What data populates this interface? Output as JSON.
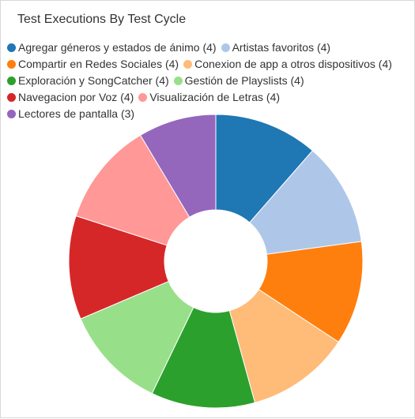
{
  "chart_data": {
    "type": "pie",
    "title": "Test Executions By Test Cycle",
    "legend_position": "top",
    "series": [
      {
        "label": "Agregar géneros y estados de ánimo",
        "value": 4,
        "color": "#1f77b4"
      },
      {
        "label": "Artistas favoritos",
        "value": 4,
        "color": "#aec7e8"
      },
      {
        "label": "Compartir en Redes Sociales",
        "value": 4,
        "color": "#ff7f0e"
      },
      {
        "label": "Conexion de app a otros dispositivos",
        "value": 4,
        "color": "#ffbb78"
      },
      {
        "label": "Exploración y SongCatcher",
        "value": 4,
        "color": "#2ca02c"
      },
      {
        "label": "Gestión de Playslists",
        "value": 4,
        "color": "#98df8a"
      },
      {
        "label": "Navegacion por Voz",
        "value": 4,
        "color": "#d62728"
      },
      {
        "label": "Visualización de Letras",
        "value": 4,
        "color": "#ff9896"
      },
      {
        "label": "Lectores de pantalla",
        "value": 3,
        "color": "#9467bd"
      }
    ]
  }
}
